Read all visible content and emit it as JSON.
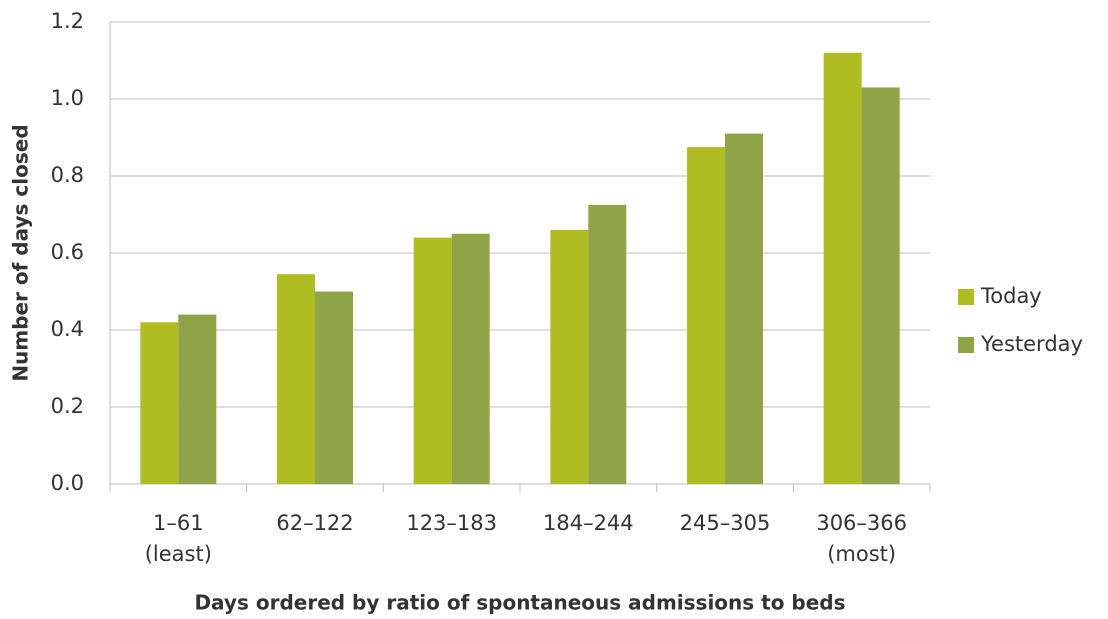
{
  "chart_data": {
    "type": "bar",
    "categories": [
      "1–61\n(least)",
      "62–122",
      "123–183",
      "184–244",
      "245–305",
      "306–366\n(most)"
    ],
    "series": [
      {
        "name": "Today",
        "color": "#afbd22",
        "values": [
          0.42,
          0.545,
          0.64,
          0.66,
          0.875,
          1.12
        ]
      },
      {
        "name": "Yesterday",
        "color": "#8fa446",
        "values": [
          0.44,
          0.5,
          0.65,
          0.725,
          0.91,
          1.03
        ]
      }
    ],
    "x_label": "Days ordered by ratio of spontaneous admissions to beds",
    "y_label": "Number of days closed",
    "ylim": [
      0,
      1.2
    ],
    "yticks": [
      {
        "value": 0,
        "label": "0.0"
      },
      0.2,
      0.4,
      0.6,
      0.8,
      {
        "value": 1,
        "label": "1.0"
      },
      1.2
    ],
    "grid": true,
    "legend": "right"
  }
}
